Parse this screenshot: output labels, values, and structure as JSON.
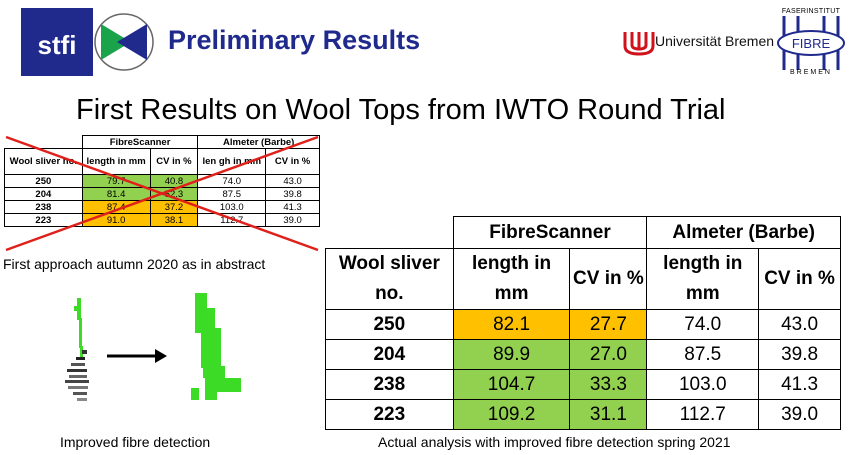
{
  "header": {
    "logo_text": "stfi",
    "title": "Preliminary Results",
    "university": "Universität Bremen",
    "fibre_logo": {
      "top": "FASERINSTITUT",
      "middle": "FIBRE",
      "bottom": "BREMEN"
    }
  },
  "subtitle": "First Results on Wool Tops from IWTO Round Trial",
  "colors": {
    "title": "#1f2a8c",
    "green": "#92d050",
    "orange": "#ffc000",
    "cross": "#e0201a"
  },
  "old_table": {
    "group_headers": [
      "FibreScanner",
      "Almeter (Barbe)"
    ],
    "col_headers": [
      "Wool sliver no.",
      "length in mm",
      "CV in %",
      "len gh in mm",
      "CV in %"
    ],
    "rows": [
      {
        "id": "250",
        "fs_length": "79.7",
        "fs_cv": "40.8",
        "al_length": "74.0",
        "al_cv": "43.0"
      },
      {
        "id": "204",
        "fs_length": "81.4",
        "fs_cv": "52.3",
        "al_length": "87.5",
        "al_cv": "39.8"
      },
      {
        "id": "238",
        "fs_length": "87.4",
        "fs_cv": "37.2",
        "al_length": "103.0",
        "al_cv": "41.3"
      },
      {
        "id": "223",
        "fs_length": "91.0",
        "fs_cv": "38.1",
        "al_length": "112.7",
        "al_cv": "39.0"
      }
    ],
    "caption": "First approach autumn 2020 as in abstract"
  },
  "fibre_images": {
    "caption": "Improved fibre detection"
  },
  "main_table": {
    "group_headers": [
      "FibreScanner",
      "Almeter (Barbe)"
    ],
    "col_headers": [
      "Wool sliver no.",
      "length in mm",
      "CV in %",
      "length in mm",
      "CV in %"
    ],
    "rows": [
      {
        "id": "250",
        "fs_length": "82.1",
        "fs_cv": "27.7",
        "al_length": "74.0",
        "al_cv": "43.0"
      },
      {
        "id": "204",
        "fs_length": "89.9",
        "fs_cv": "27.0",
        "al_length": "87.5",
        "al_cv": "39.8"
      },
      {
        "id": "238",
        "fs_length": "104.7",
        "fs_cv": "33.3",
        "al_length": "103.0",
        "al_cv": "41.3"
      },
      {
        "id": "223",
        "fs_length": "109.2",
        "fs_cv": "31.1",
        "al_length": "112.7",
        "al_cv": "39.0"
      }
    ],
    "caption": "Actual analysis with improved fibre detection spring 2021"
  }
}
